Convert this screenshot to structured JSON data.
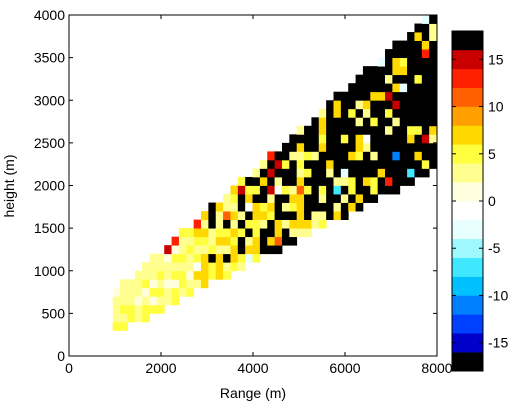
{
  "chart_data": {
    "type": "heatmap",
    "xlabel": "Range (m)",
    "ylabel": "height (m)",
    "xlim": [
      0,
      8000
    ],
    "ylim": [
      0,
      4000
    ],
    "xticks": [
      0,
      2000,
      4000,
      6000,
      8000
    ],
    "xtick_labels": [
      "0",
      "2000",
      "4000",
      "6000",
      "8000"
    ],
    "yticks": [
      0,
      500,
      1000,
      1500,
      2000,
      2500,
      3000,
      3500,
      4000
    ],
    "ytick_labels": [
      "0",
      "500",
      "1000",
      "1500",
      "2000",
      "2500",
      "3000",
      "3500",
      "4000"
    ],
    "colorbar": {
      "range": [
        -18,
        18
      ],
      "ticks": [
        -15,
        -10,
        -5,
        0,
        5,
        10,
        15
      ],
      "tick_labels": [
        "-15",
        "-10",
        "-5",
        "0",
        "5",
        "10",
        "15"
      ],
      "colors_low_to_high": [
        "#000000",
        "#0000c8",
        "#0040ff",
        "#0080ff",
        "#00c0ff",
        "#40e8ff",
        "#a0f8ff",
        "#e8ffff",
        "#ffffff",
        "#ffffe0",
        "#ffff90",
        "#ffff40",
        "#ffd800",
        "#ffa000",
        "#ff6000",
        "#ff2000",
        "#c80000",
        "#000000"
      ]
    },
    "sector": {
      "x_min": 950,
      "x_max": 7950,
      "lower_edge_y_at_x_min": 300,
      "lower_edge_y_at_x_max": 2230,
      "upper_edge_y_at_x_min": 700,
      "upper_edge_y_at_x_max": 4000
    },
    "cell_size": {
      "dx": 160,
      "dy": 100
    },
    "notable_cells": [
      {
        "x": 2100,
        "y": 1300,
        "value": 18
      },
      {
        "x": 2200,
        "y": 1400,
        "value": 18
      },
      {
        "x": 2000,
        "y": 1200,
        "value": 15
      },
      {
        "x": 2300,
        "y": 1250,
        "value": 12
      },
      {
        "x": 3500,
        "y": 2500,
        "value": -6
      },
      {
        "x": 5700,
        "y": 1900,
        "value": -7
      },
      {
        "x": 6700,
        "y": 3750,
        "value": -13
      },
      {
        "x": 6500,
        "y": 3800,
        "value": 16
      },
      {
        "x": 6900,
        "y": 3000,
        "value": 14
      },
      {
        "x": 7000,
        "y": 2300,
        "value": -12
      },
      {
        "x": 7300,
        "y": 2100,
        "value": -7
      },
      {
        "x": 6800,
        "y": 2000,
        "value": 13
      },
      {
        "x": 7700,
        "y": 3500,
        "value": 12
      }
    ]
  }
}
